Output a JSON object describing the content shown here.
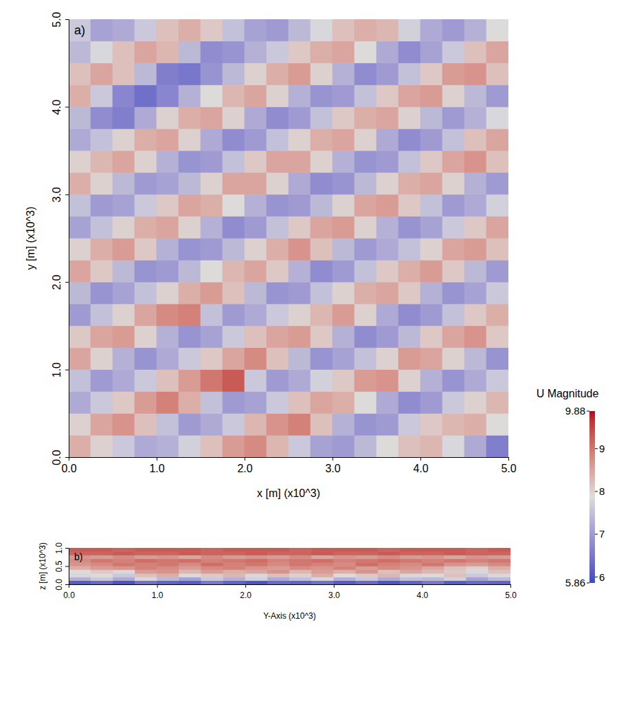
{
  "chart_data": [
    {
      "type": "heatmap",
      "panel_label": "a)",
      "xlabel": "x [m] (x10^3)",
      "ylabel": "y [m] (x10^3)",
      "xlim": [
        0,
        5
      ],
      "ylim": [
        0,
        5
      ],
      "xticks": [
        {
          "value": 0,
          "label": "0.0"
        },
        {
          "value": 1,
          "label": "1.0"
        },
        {
          "value": 2,
          "label": "2.0"
        },
        {
          "value": 3,
          "label": "3.0"
        },
        {
          "value": 4,
          "label": "4.0"
        },
        {
          "value": 5,
          "label": "5.0"
        }
      ],
      "yticks": [
        {
          "value": 0,
          "label": "0.0"
        },
        {
          "value": 1,
          "label": "1.0"
        },
        {
          "value": 2,
          "label": "2.0"
        },
        {
          "value": 3,
          "label": "3.0"
        },
        {
          "value": 4,
          "label": "4.0"
        },
        {
          "value": 5,
          "label": "5.0"
        }
      ],
      "x_edges": [
        0,
        0.25,
        0.5,
        0.75,
        1,
        1.25,
        1.5,
        1.75,
        2,
        2.25,
        2.5,
        2.75,
        3,
        3.25,
        3.5,
        3.75,
        4,
        4.25,
        4.5,
        4.75,
        5
      ],
      "y_edges": [
        0,
        0.25,
        0.5,
        0.75,
        1,
        1.25,
        1.5,
        1.75,
        2,
        2.25,
        2.5,
        2.75,
        3,
        3.25,
        3.5,
        3.75,
        4,
        4.25,
        4.5,
        4.75,
        5
      ],
      "cells": [
        [
          8.4,
          8.0,
          7.6,
          7.2,
          7.3,
          7.7,
          8.2,
          8.6,
          8.8,
          8.3,
          7.6,
          7.1,
          7.0,
          7.4,
          7.9,
          8.2,
          8.3,
          7.8,
          7.2,
          6.6
        ],
        [
          8.0,
          8.5,
          8.7,
          8.2,
          7.5,
          7.0,
          7.2,
          7.6,
          8.3,
          8.7,
          8.9,
          8.2,
          7.3,
          6.9,
          7.0,
          7.6,
          8.1,
          8.3,
          8.4,
          7.9
        ],
        [
          7.2,
          7.6,
          8.1,
          8.6,
          8.9,
          8.4,
          7.5,
          7.0,
          7.1,
          7.6,
          8.2,
          8.5,
          8.4,
          7.9,
          7.2,
          6.8,
          7.0,
          7.6,
          8.0,
          8.3
        ],
        [
          7.5,
          7.0,
          7.2,
          7.6,
          8.2,
          8.6,
          9.0,
          9.3,
          7.6,
          7.0,
          7.2,
          7.7,
          8.1,
          8.6,
          8.7,
          8.0,
          7.3,
          6.9,
          7.2,
          7.6
        ],
        [
          8.5,
          8.0,
          7.3,
          6.9,
          7.2,
          7.6,
          8.1,
          8.5,
          8.8,
          8.2,
          7.4,
          6.9,
          7.1,
          7.5,
          8.0,
          8.6,
          8.5,
          8.0,
          7.4,
          6.9
        ],
        [
          8.1,
          8.5,
          8.6,
          8.0,
          7.3,
          6.9,
          7.1,
          7.6,
          8.2,
          8.5,
          8.6,
          8.1,
          7.3,
          6.8,
          7.0,
          7.4,
          8.1,
          8.5,
          8.7,
          8.1
        ],
        [
          7.0,
          7.5,
          8.0,
          8.5,
          8.8,
          8.9,
          7.5,
          7.0,
          7.2,
          7.6,
          8.0,
          8.3,
          8.6,
          8.0,
          7.2,
          6.8,
          7.0,
          7.5,
          8.1,
          8.4
        ],
        [
          7.4,
          6.9,
          7.1,
          7.5,
          8.0,
          8.4,
          8.6,
          8.2,
          7.4,
          6.9,
          7.0,
          7.5,
          8.0,
          8.4,
          8.5,
          8.1,
          7.3,
          6.9,
          7.1,
          7.6
        ],
        [
          8.5,
          8.1,
          7.4,
          6.9,
          7.0,
          7.4,
          7.9,
          8.3,
          8.5,
          8.1,
          7.3,
          6.8,
          7.0,
          7.5,
          8.1,
          8.4,
          8.6,
          8.1,
          7.4,
          7.0
        ],
        [
          8.0,
          8.4,
          8.6,
          8.1,
          7.3,
          6.9,
          7.0,
          7.4,
          8.0,
          8.4,
          8.7,
          8.2,
          7.4,
          7.0,
          7.2,
          7.5,
          8.0,
          8.5,
          8.6,
          8.2
        ],
        [
          7.1,
          7.5,
          8.0,
          8.4,
          8.5,
          8.0,
          7.3,
          6.8,
          7.0,
          7.5,
          8.1,
          8.5,
          8.6,
          8.0,
          7.3,
          6.9,
          7.1,
          7.6,
          8.1,
          8.5
        ],
        [
          7.5,
          7.0,
          7.1,
          7.6,
          8.1,
          8.5,
          8.4,
          7.9,
          7.3,
          6.9,
          7.0,
          7.4,
          8.0,
          8.5,
          8.6,
          8.1,
          7.5,
          7.0,
          7.2,
          7.7
        ],
        [
          8.4,
          8.0,
          7.4,
          7.0,
          7.1,
          7.4,
          8.0,
          8.5,
          8.5,
          8.0,
          7.2,
          6.8,
          6.9,
          7.4,
          8.0,
          8.4,
          8.5,
          8.0,
          7.3,
          7.0
        ],
        [
          8.0,
          8.3,
          8.5,
          8.0,
          7.3,
          6.9,
          7.0,
          7.5,
          8.1,
          8.5,
          8.5,
          8.0,
          7.3,
          6.9,
          7.0,
          7.5,
          8.1,
          8.5,
          8.7,
          8.2
        ],
        [
          7.2,
          7.5,
          8.0,
          8.4,
          8.5,
          8.0,
          7.2,
          6.8,
          7.0,
          7.5,
          8.0,
          8.4,
          8.5,
          8.0,
          7.2,
          6.8,
          7.0,
          7.5,
          8.2,
          8.5
        ],
        [
          7.4,
          6.8,
          6.6,
          7.2,
          8.0,
          8.4,
          8.5,
          8.0,
          7.2,
          6.8,
          7.0,
          7.5,
          8.1,
          8.4,
          8.5,
          8.0,
          7.4,
          7.0,
          7.3,
          7.8
        ],
        [
          8.4,
          7.6,
          6.7,
          6.4,
          6.7,
          7.3,
          7.9,
          8.3,
          8.5,
          8.0,
          7.3,
          6.9,
          7.0,
          7.5,
          8.1,
          8.5,
          8.6,
          8.0,
          7.4,
          7.0
        ],
        [
          8.2,
          8.5,
          8.2,
          7.4,
          6.6,
          6.5,
          6.9,
          7.4,
          8.0,
          8.4,
          8.6,
          8.0,
          7.3,
          6.8,
          7.0,
          7.5,
          8.1,
          8.6,
          8.7,
          8.2
        ],
        [
          7.4,
          7.8,
          8.2,
          8.5,
          8.3,
          7.4,
          6.8,
          6.9,
          7.3,
          7.6,
          8.1,
          8.4,
          8.5,
          7.9,
          7.2,
          6.8,
          7.1,
          7.6,
          8.2,
          8.5
        ],
        [
          7.6,
          7.1,
          7.2,
          7.6,
          8.2,
          8.4,
          8.1,
          7.5,
          7.1,
          7.0,
          7.4,
          7.8,
          8.2,
          8.4,
          8.3,
          7.7,
          7.2,
          7.0,
          7.3,
          7.9
        ]
      ],
      "colorbar": {
        "title": "U Magnitude",
        "range": [
          5.86,
          9.88
        ],
        "ticks": [
          5.86,
          6,
          7,
          8,
          9,
          9.88
        ]
      }
    },
    {
      "type": "heatmap",
      "panel_label": "b)",
      "xlabel": "Y-Axis (x10^3)",
      "ylabel": "z [m] (x10^3)",
      "xlim": [
        0,
        5
      ],
      "ylim": [
        0,
        1
      ],
      "xticks": [
        {
          "value": 0,
          "label": "0.0"
        },
        {
          "value": 1,
          "label": "1.0"
        },
        {
          "value": 2,
          "label": "2.0"
        },
        {
          "value": 3,
          "label": "3.0"
        },
        {
          "value": 4,
          "label": "4.0"
        },
        {
          "value": 5,
          "label": "5.0"
        }
      ],
      "yticks": [
        {
          "value": 0,
          "label": "0.0"
        },
        0.5,
        {
          "value": 1,
          "label": "1.0"
        }
      ],
      "x_edges": [
        0,
        0.25,
        0.5,
        0.75,
        1,
        1.25,
        1.5,
        1.75,
        2,
        2.25,
        2.5,
        2.75,
        3,
        3.25,
        3.5,
        3.75,
        4,
        4.25,
        4.5,
        4.75,
        5
      ],
      "y_edges": [
        0,
        0.1,
        0.2,
        0.3,
        0.4,
        0.5,
        0.6,
        0.7,
        0.8,
        0.9,
        1
      ],
      "cells": [
        [
          6.1,
          6.3,
          6.0,
          6.4,
          6.2,
          6.1,
          6.5,
          6.2,
          6.0,
          6.3,
          6.2,
          6.4,
          6.1,
          6.3,
          6.0,
          6.2,
          6.5,
          6.1,
          6.3,
          6.2
        ],
        [
          7.3,
          7.6,
          7.2,
          7.8,
          7.4,
          7.1,
          7.6,
          7.3,
          7.7,
          7.2,
          7.5,
          7.8,
          7.3,
          7.6,
          7.2,
          7.5,
          7.4,
          7.7,
          7.1,
          7.4
        ],
        [
          7.8,
          7.9,
          7.6,
          8.2,
          8.4,
          7.9,
          8.1,
          8.3,
          7.8,
          8.2,
          8.0,
          8.4,
          7.9,
          8.1,
          8.3,
          7.8,
          7.9,
          8.2,
          7.6,
          7.8
        ],
        [
          7.9,
          8.1,
          7.8,
          8.6,
          8.7,
          8.3,
          8.6,
          8.4,
          8.5,
          8.7,
          8.3,
          8.6,
          8.4,
          8.7,
          8.2,
          8.5,
          8.3,
          8.1,
          7.8,
          8.2
        ],
        [
          8.4,
          8.6,
          8.7,
          8.9,
          8.8,
          8.6,
          8.8,
          8.9,
          8.7,
          8.6,
          8.8,
          8.7,
          8.9,
          8.6,
          8.8,
          8.7,
          8.5,
          8.2,
          8.0,
          8.4
        ],
        [
          8.7,
          8.8,
          9.0,
          8.9,
          9.0,
          8.8,
          9.1,
          8.9,
          9.0,
          8.8,
          9.0,
          8.9,
          8.8,
          9.1,
          8.9,
          8.8,
          9.0,
          8.7,
          8.6,
          8.8
        ],
        [
          8.8,
          9.0,
          8.9,
          9.1,
          9.0,
          9.1,
          8.9,
          9.0,
          9.1,
          8.9,
          9.0,
          9.1,
          8.9,
          9.0,
          9.1,
          9.0,
          8.9,
          9.0,
          8.9,
          9.0
        ],
        [
          8.7,
          8.6,
          8.8,
          8.6,
          8.7,
          8.5,
          8.8,
          8.6,
          8.7,
          8.6,
          8.8,
          8.5,
          8.7,
          8.6,
          8.8,
          8.6,
          8.7,
          8.5,
          8.7,
          8.6
        ],
        [
          9.2,
          9.2,
          9.3,
          9.2,
          9.2,
          9.3,
          9.2,
          9.2,
          9.3,
          9.2,
          9.2,
          9.3,
          9.2,
          9.2,
          9.3,
          9.2,
          9.2,
          9.3,
          9.2,
          9.2
        ],
        [
          9.3,
          9.3,
          9.2,
          9.3,
          9.3,
          9.3,
          9.2,
          9.3,
          9.3,
          9.3,
          9.2,
          9.3,
          9.3,
          9.3,
          9.2,
          9.3,
          9.3,
          9.3,
          9.2,
          9.3
        ]
      ]
    }
  ]
}
